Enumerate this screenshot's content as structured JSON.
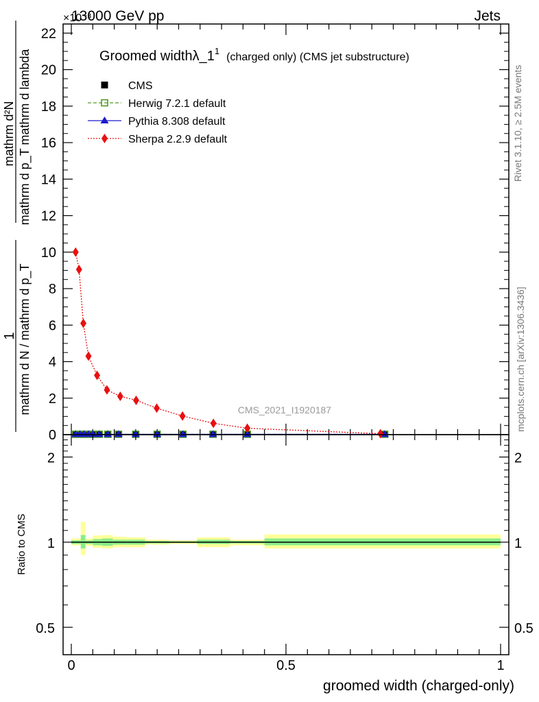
{
  "header": {
    "left": "13000 GeV pp",
    "right": "Jets",
    "exponent": "×10⁻³"
  },
  "side_labels": {
    "rivet": "Rivet 3.1.10, ≥ 2.5M events",
    "mcplots": "mcplots.cern.ch [arXiv:1306.3436]"
  },
  "watermark": "CMS_2021_I1920187",
  "chart_data": [
    {
      "type": "line",
      "title": "Groomed widthλ_1",
      "title_sup": "1",
      "subtitle": "(charged only) (CMS jet substructure)",
      "xlabel": "groomed width (charged-only)",
      "ylabel": {
        "numerator": "1",
        "denominator": "mathrm d N / mathrm d p_T",
        "right_numerator": "mathrm d²N",
        "right_denominator": "mathrm d p_T mathrm d lambda"
      },
      "xlim": [
        0,
        1
      ],
      "ylim": [
        0,
        22.5
      ],
      "y_scale_factor": "1e-3",
      "xticks": [
        0,
        0.5,
        1
      ],
      "xtick_labels": [
        "0",
        "0.5",
        "1"
      ],
      "yticks": [
        0,
        2,
        4,
        6,
        8,
        10,
        12,
        14,
        16,
        18,
        20,
        22
      ],
      "ytick_labels": [
        "0",
        "2",
        "4",
        "6",
        "8",
        "10",
        "12",
        "14",
        "16",
        "18",
        "20",
        "22"
      ],
      "legend": {
        "placement": "top-left"
      },
      "series": [
        {
          "name": "CMS",
          "marker": "square-filled",
          "color": "#000000",
          "x": [
            0.01,
            0.02,
            0.03,
            0.04,
            0.05,
            0.065,
            0.085,
            0.11,
            0.15,
            0.2,
            0.26,
            0.33,
            0.41,
            0.73
          ],
          "y": [
            0.02,
            0.02,
            0.02,
            0.02,
            0.02,
            0.02,
            0.02,
            0.02,
            0.02,
            0.02,
            0.02,
            0.02,
            0.02,
            0.02
          ]
        },
        {
          "name": "Herwig 7.2.1 default",
          "marker": "square-open",
          "line": "dashed",
          "color": "#4f9a1f",
          "x": [
            0.01,
            0.02,
            0.03,
            0.04,
            0.05,
            0.065,
            0.085,
            0.11,
            0.15,
            0.2,
            0.26,
            0.33,
            0.41,
            0.73
          ],
          "y": [
            0.02,
            0.02,
            0.02,
            0.02,
            0.02,
            0.02,
            0.02,
            0.02,
            0.02,
            0.02,
            0.02,
            0.02,
            0.02,
            0.02
          ]
        },
        {
          "name": "Pythia 8.308 default",
          "marker": "triangle-filled",
          "line": "solid",
          "color": "#1a1acc",
          "x": [
            0.01,
            0.02,
            0.03,
            0.04,
            0.05,
            0.065,
            0.085,
            0.11,
            0.15,
            0.2,
            0.26,
            0.33,
            0.41,
            0.73
          ],
          "y": [
            0.02,
            0.02,
            0.02,
            0.02,
            0.02,
            0.02,
            0.02,
            0.02,
            0.02,
            0.02,
            0.02,
            0.02,
            0.02,
            0.02
          ]
        },
        {
          "name": "Sherpa 2.2.9 default",
          "marker": "diamond-filled",
          "line": "dotted",
          "color": "#e81010",
          "x": [
            0.01,
            0.018,
            0.028,
            0.04,
            0.06,
            0.083,
            0.114,
            0.151,
            0.199,
            0.259,
            0.331,
            0.41,
            0.72
          ],
          "y": [
            10.0,
            9.05,
            6.1,
            4.3,
            3.25,
            2.45,
            2.1,
            1.88,
            1.45,
            1.02,
            0.62,
            0.35,
            0.05
          ]
        }
      ]
    },
    {
      "type": "line",
      "ylabel": "Ratio to CMS",
      "y_scale": "log",
      "ylim": [
        0.4,
        2.4
      ],
      "xlim": [
        0,
        1
      ],
      "yticks": [
        0.5,
        1,
        2
      ],
      "ytick_labels": [
        "0.5",
        "1",
        "2"
      ],
      "reference": 1,
      "bands": {
        "stat_color": "#88ee88",
        "total_color": "#ffff99",
        "bins": [
          {
            "x0": 0.0,
            "x1": 0.022,
            "stat": [
              0.985,
              1.015
            ],
            "total": [
              0.975,
              1.03
            ]
          },
          {
            "x0": 0.022,
            "x1": 0.033,
            "stat": [
              0.95,
              1.06
            ],
            "total": [
              0.9,
              1.18
            ]
          },
          {
            "x0": 0.033,
            "x1": 0.05,
            "stat": [
              0.985,
              1.015
            ],
            "total": [
              0.97,
              1.03
            ]
          },
          {
            "x0": 0.05,
            "x1": 0.072,
            "stat": [
              0.975,
              1.025
            ],
            "total": [
              0.955,
              1.055
            ]
          },
          {
            "x0": 0.072,
            "x1": 0.097,
            "stat": [
              0.97,
              1.03
            ],
            "total": [
              0.95,
              1.06
            ]
          },
          {
            "x0": 0.097,
            "x1": 0.128,
            "stat": [
              0.98,
              1.02
            ],
            "total": [
              0.96,
              1.045
            ]
          },
          {
            "x0": 0.128,
            "x1": 0.172,
            "stat": [
              0.98,
              1.02
            ],
            "total": [
              0.96,
              1.04
            ]
          },
          {
            "x0": 0.172,
            "x1": 0.228,
            "stat": [
              0.99,
              1.01
            ],
            "total": [
              0.98,
              1.02
            ]
          },
          {
            "x0": 0.228,
            "x1": 0.293,
            "stat": [
              0.993,
              1.007
            ],
            "total": [
              0.985,
              1.015
            ]
          },
          {
            "x0": 0.293,
            "x1": 0.37,
            "stat": [
              0.985,
              1.02
            ],
            "total": [
              0.96,
              1.04
            ]
          },
          {
            "x0": 0.37,
            "x1": 0.45,
            "stat": [
              0.99,
              1.01
            ],
            "total": [
              0.975,
              1.02
            ]
          },
          {
            "x0": 0.45,
            "x1": 1.0,
            "stat": [
              0.975,
              1.03
            ],
            "total": [
              0.95,
              1.065
            ]
          }
        ]
      }
    }
  ]
}
